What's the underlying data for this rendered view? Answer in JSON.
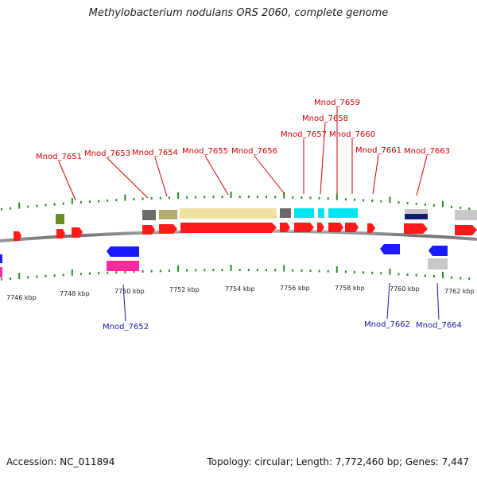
{
  "title": "Methylobacterium nodulans ORS 2060, complete genome",
  "footer": {
    "accession": "Accession: NC_011894",
    "summary": "Topology: circular; Length: 7,772,460 bp; Genes: 7,447"
  },
  "colors": {
    "forward_gene": "#ff1a1a",
    "reverse_gene": "#1a1aff",
    "label_forward": "#d40000",
    "label_reverse": "#1a1aa8",
    "tick": "#2a8a2a",
    "backbone": "#7a7a7a"
  },
  "scale": {
    "ticks": [
      "7746 kbp",
      "7748 kbp",
      "7750 kbp",
      "7752 kbp",
      "7754 kbp",
      "7756 kbp",
      "7758 kbp",
      "7760 kbp",
      "7762 kbp"
    ]
  },
  "gene_labels_top": [
    "Mnod_7651",
    "Mnod_7653",
    "Mnod_7654",
    "Mnod_7655",
    "Mnod_7656",
    "Mnod_7657",
    "Mnod_7658",
    "Mnod_7659",
    "Mnod_7660",
    "Mnod_7661",
    "Mnod_7663"
  ],
  "gene_labels_bottom": [
    "Mnod_7652",
    "Mnod_7662",
    "Mnod_7664"
  ]
}
